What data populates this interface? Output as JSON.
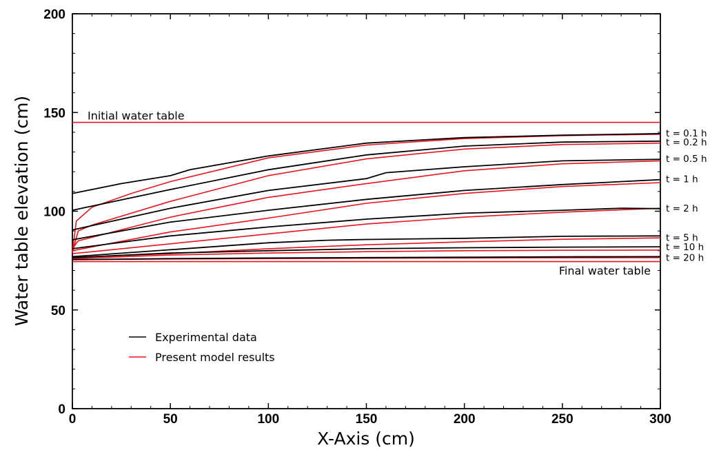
{
  "chart_data": {
    "type": "line",
    "xlabel": "X-Axis (cm)",
    "ylabel": "Water table elevation (cm)",
    "xlim": [
      0,
      300
    ],
    "ylim": [
      0,
      200
    ],
    "xticks": [
      0,
      50,
      100,
      150,
      200,
      250,
      300
    ],
    "yticks": [
      0,
      50,
      100,
      150,
      200
    ],
    "grid": false,
    "legend_position": "bottom-left",
    "legend": [
      {
        "label": "Experimental data",
        "color": "#000000"
      },
      {
        "label": "Present model results",
        "color": "#e8141b"
      }
    ],
    "annotations": {
      "initial": {
        "text": "Initial water table",
        "y": 145
      },
      "final": {
        "text": "Final water table",
        "y": 74.5
      }
    },
    "experimental_color": "#000000",
    "model_color": "#e8141b",
    "series": [
      {
        "name": "t = 0.1 h",
        "experimental": [
          [
            0,
            109
          ],
          [
            25,
            114
          ],
          [
            50,
            118
          ],
          [
            60,
            121
          ],
          [
            100,
            128
          ],
          [
            150,
            134.5
          ],
          [
            200,
            137.3
          ],
          [
            250,
            138.5
          ],
          [
            300,
            139.3
          ]
        ],
        "model": [
          [
            0,
            79
          ],
          [
            2,
            95
          ],
          [
            10,
            102
          ],
          [
            30,
            109
          ],
          [
            50,
            115
          ],
          [
            100,
            127
          ],
          [
            150,
            133.5
          ],
          [
            200,
            136.8
          ],
          [
            250,
            138.3
          ],
          [
            300,
            139
          ]
        ]
      },
      {
        "name": "t = 0.2 h",
        "experimental": [
          [
            0,
            100.5
          ],
          [
            50,
            111
          ],
          [
            100,
            121
          ],
          [
            150,
            128.5
          ],
          [
            200,
            133
          ],
          [
            250,
            135
          ],
          [
            300,
            135.5
          ]
        ],
        "model": [
          [
            0,
            79
          ],
          [
            3,
            90
          ],
          [
            10,
            93
          ],
          [
            50,
            105
          ],
          [
            100,
            118
          ],
          [
            150,
            126.5
          ],
          [
            200,
            131.5
          ],
          [
            250,
            133.8
          ],
          [
            300,
            134.5
          ]
        ]
      },
      {
        "name": "t = 0.5 h",
        "experimental": [
          [
            0,
            90.5
          ],
          [
            50,
            101.5
          ],
          [
            100,
            110.5
          ],
          [
            150,
            116.5
          ],
          [
            160,
            119.5
          ],
          [
            200,
            122.5
          ],
          [
            250,
            125.5
          ],
          [
            300,
            126.3
          ]
        ],
        "model": [
          [
            0,
            81
          ],
          [
            3,
            85
          ],
          [
            50,
            97
          ],
          [
            100,
            107
          ],
          [
            150,
            114
          ],
          [
            200,
            120.5
          ],
          [
            250,
            124
          ],
          [
            300,
            125.5
          ]
        ]
      },
      {
        "name": "t = 1 h",
        "experimental": [
          [
            0,
            85.5
          ],
          [
            50,
            94.5
          ],
          [
            100,
            100.5
          ],
          [
            150,
            106
          ],
          [
            200,
            110.5
          ],
          [
            250,
            113.5
          ],
          [
            300,
            116
          ]
        ],
        "model": [
          [
            0,
            80
          ],
          [
            50,
            89.5
          ],
          [
            100,
            96.5
          ],
          [
            150,
            104
          ],
          [
            200,
            109
          ],
          [
            250,
            112.5
          ],
          [
            300,
            114.5
          ]
        ]
      },
      {
        "name": "t = 2 h",
        "experimental": [
          [
            0,
            81
          ],
          [
            50,
            87.5
          ],
          [
            100,
            92
          ],
          [
            150,
            96
          ],
          [
            200,
            99
          ],
          [
            250,
            100.5
          ],
          [
            280,
            101.5
          ],
          [
            300,
            101.3
          ]
        ],
        "model": [
          [
            0,
            78.5
          ],
          [
            50,
            83.5
          ],
          [
            100,
            88.5
          ],
          [
            150,
            93.5
          ],
          [
            200,
            97
          ],
          [
            250,
            99.5
          ],
          [
            300,
            101.5
          ]
        ]
      },
      {
        "name": "t = 5 h",
        "experimental": [
          [
            0,
            77
          ],
          [
            50,
            80.5
          ],
          [
            100,
            84
          ],
          [
            130,
            85.3
          ],
          [
            150,
            85.7
          ],
          [
            200,
            86.3
          ],
          [
            250,
            87.3
          ],
          [
            300,
            87.5
          ]
        ],
        "model": [
          [
            0,
            76.5
          ],
          [
            50,
            78.5
          ],
          [
            100,
            81
          ],
          [
            150,
            83
          ],
          [
            200,
            84.5
          ],
          [
            250,
            85.8
          ],
          [
            300,
            86.5
          ]
        ]
      },
      {
        "name": "t = 10 h",
        "experimental": [
          [
            0,
            76.5
          ],
          [
            50,
            78.8
          ],
          [
            100,
            80
          ],
          [
            150,
            81
          ],
          [
            200,
            81.5
          ],
          [
            250,
            81.8
          ],
          [
            300,
            82
          ]
        ],
        "model": [
          [
            0,
            76
          ],
          [
            50,
            77.8
          ],
          [
            100,
            78.8
          ],
          [
            150,
            79.5
          ],
          [
            200,
            80
          ],
          [
            250,
            80.2
          ],
          [
            300,
            80.3
          ]
        ]
      },
      {
        "name": "t = 20 h",
        "experimental": [
          [
            0,
            75.5
          ],
          [
            50,
            76
          ],
          [
            100,
            76.3
          ],
          [
            150,
            76.5
          ],
          [
            200,
            76.7
          ],
          [
            250,
            76.9
          ],
          [
            300,
            77
          ]
        ],
        "model": [
          [
            0,
            75.5
          ],
          [
            50,
            75.8
          ],
          [
            100,
            76
          ],
          [
            150,
            76.2
          ],
          [
            200,
            76.3
          ],
          [
            250,
            76.4
          ],
          [
            300,
            76.5
          ]
        ]
      }
    ]
  }
}
